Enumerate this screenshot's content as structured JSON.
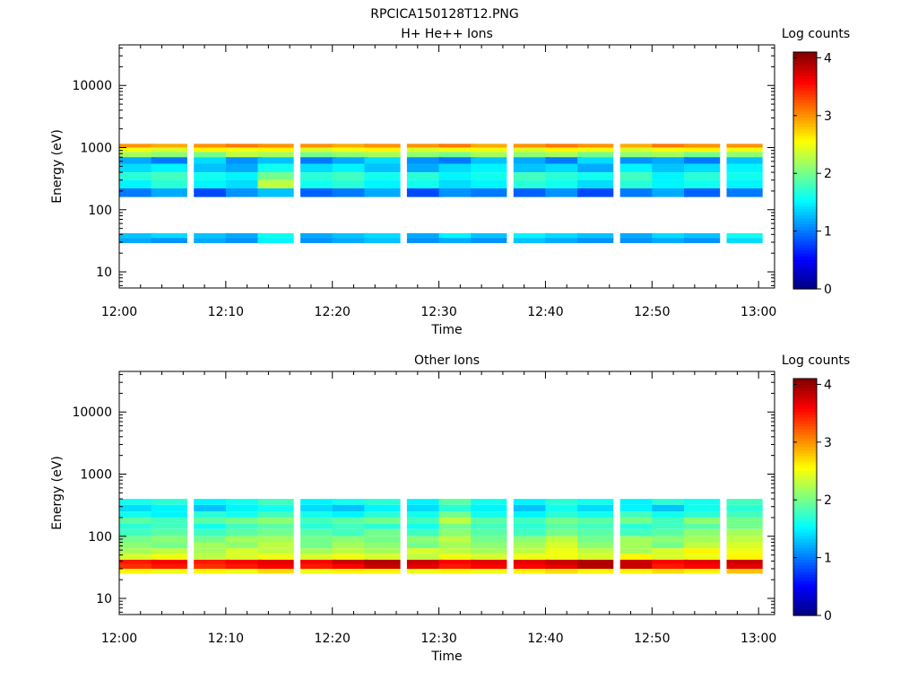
{
  "figure_title": "RPCICA150128T12.PNG",
  "chart_data": [
    {
      "type": "heatmap",
      "title": "H+ He++ Ions",
      "xlabel": "Time",
      "ylabel": "Energy (eV)",
      "x_ticks": [
        "12:00",
        "12:10",
        "12:20",
        "12:30",
        "12:40",
        "12:50",
        "13:00"
      ],
      "y_ticks": [
        "10",
        "100",
        "1000",
        "10000"
      ],
      "y_scale": "log",
      "ylim": [
        5.5,
        45000
      ],
      "colorbar": {
        "label": "Log counts",
        "ticks": [
          "0",
          "1",
          "2",
          "3",
          "4"
        ],
        "range": [
          0,
          4.1
        ],
        "colormap": "jet"
      },
      "time_bins": [
        "12:00",
        "12:03",
        "12:07",
        "12:10",
        "12:13",
        "12:17",
        "12:20",
        "12:23",
        "12:27",
        "12:30",
        "12:33",
        "12:37",
        "12:40",
        "12:43",
        "12:47",
        "12:50",
        "12:53",
        "12:57"
      ],
      "bands": [
        {
          "energy_ev": [
            1000,
            1150
          ],
          "values": [
            3.0,
            2.9,
            3.0,
            3.1,
            3.0,
            3.0,
            2.9,
            3.0,
            3.0,
            3.1,
            2.9,
            3.0,
            3.1,
            3.0,
            2.9,
            3.1,
            3.0,
            3.0
          ]
        },
        {
          "energy_ev": [
            850,
            1000
          ],
          "values": [
            2.5,
            2.4,
            2.6,
            2.5,
            2.6,
            2.4,
            2.5,
            2.6,
            2.4,
            2.5,
            2.5,
            2.4,
            2.6,
            2.5,
            2.4,
            2.5,
            2.6,
            2.5
          ]
        },
        {
          "energy_ev": [
            700,
            850
          ],
          "values": [
            2.2,
            2.1,
            2.0,
            2.3,
            2.2,
            2.0,
            2.1,
            2.2,
            2.1,
            2.0,
            2.2,
            2.1,
            2.2,
            2.0,
            2.1,
            2.2,
            2.0,
            2.1
          ]
        },
        {
          "energy_ev": [
            550,
            700
          ],
          "values": [
            1.2,
            1.0,
            1.4,
            1.1,
            1.3,
            1.0,
            1.2,
            1.4,
            1.1,
            1.0,
            1.3,
            1.2,
            1.0,
            1.4,
            1.1,
            1.2,
            1.0,
            1.3
          ]
        },
        {
          "energy_ev": [
            400,
            550
          ],
          "values": [
            1.4,
            1.5,
            1.3,
            1.2,
            1.6,
            1.4,
            1.5,
            1.3,
            1.2,
            1.4,
            1.5,
            1.3,
            1.4,
            1.2,
            1.5,
            1.3,
            1.4,
            1.5
          ]
        },
        {
          "energy_ev": [
            300,
            400
          ],
          "values": [
            1.7,
            1.8,
            1.6,
            1.5,
            2.0,
            1.7,
            1.8,
            1.6,
            1.7,
            1.5,
            1.6,
            1.8,
            1.7,
            1.6,
            1.8,
            1.5,
            1.7,
            1.6
          ]
        },
        {
          "energy_ev": [
            220,
            300
          ],
          "values": [
            1.5,
            1.7,
            1.5,
            1.4,
            2.3,
            1.6,
            1.7,
            1.5,
            1.6,
            1.4,
            1.5,
            1.7,
            1.6,
            1.4,
            1.7,
            1.5,
            1.6,
            1.5
          ]
        },
        {
          "energy_ev": [
            160,
            220
          ],
          "values": [
            1.0,
            1.2,
            0.8,
            1.1,
            1.3,
            0.9,
            1.0,
            1.2,
            0.8,
            1.1,
            1.0,
            0.9,
            1.1,
            0.8,
            1.0,
            1.2,
            0.9,
            1.0
          ]
        },
        {
          "energy_ev": [
            35,
            42
          ],
          "values": [
            1.3,
            1.4,
            1.3,
            1.2,
            1.6,
            1.2,
            1.3,
            1.4,
            1.2,
            1.5,
            1.3,
            1.5,
            1.4,
            1.3,
            1.2,
            1.4,
            1.3,
            1.6
          ]
        },
        {
          "energy_ev": [
            29,
            35
          ],
          "values": [
            1.2,
            1.1,
            1.2,
            1.1,
            1.5,
            1.1,
            1.2,
            1.3,
            1.1,
            1.2,
            1.1,
            1.3,
            1.2,
            1.1,
            1.1,
            1.2,
            1.1,
            1.4
          ]
        }
      ]
    },
    {
      "type": "heatmap",
      "title": "Other Ions",
      "xlabel": "Time",
      "ylabel": "Energy (eV)",
      "x_ticks": [
        "12:00",
        "12:10",
        "12:20",
        "12:30",
        "12:40",
        "12:50",
        "13:00"
      ],
      "y_ticks": [
        "10",
        "100",
        "1000",
        "10000"
      ],
      "y_scale": "log",
      "ylim": [
        5.5,
        45000
      ],
      "colorbar": {
        "label": "Log counts",
        "ticks": [
          "0",
          "1",
          "2",
          "3",
          "4"
        ],
        "range": [
          0,
          4.1
        ],
        "colormap": "jet"
      },
      "time_bins": [
        "12:00",
        "12:03",
        "12:07",
        "12:10",
        "12:13",
        "12:17",
        "12:20",
        "12:23",
        "12:27",
        "12:30",
        "12:33",
        "12:37",
        "12:40",
        "12:43",
        "12:47",
        "12:50",
        "12:53",
        "12:57"
      ],
      "bands": [
        {
          "energy_ev": [
            320,
            400
          ],
          "values": [
            1.6,
            1.7,
            1.5,
            1.6,
            1.8,
            1.5,
            1.6,
            1.7,
            1.5,
            1.9,
            1.6,
            1.5,
            1.7,
            1.6,
            1.5,
            1.7,
            1.6,
            1.8
          ]
        },
        {
          "energy_ev": [
            250,
            320
          ],
          "values": [
            1.4,
            1.5,
            1.3,
            1.5,
            1.6,
            1.4,
            1.3,
            1.5,
            1.4,
            1.7,
            1.5,
            1.3,
            1.6,
            1.4,
            1.5,
            1.3,
            1.6,
            1.7
          ]
        },
        {
          "energy_ev": [
            200,
            250
          ],
          "values": [
            1.6,
            1.5,
            1.7,
            1.6,
            1.8,
            1.6,
            1.5,
            1.7,
            1.6,
            2.0,
            1.6,
            1.5,
            1.7,
            1.6,
            1.8,
            1.6,
            1.7,
            1.8
          ]
        },
        {
          "energy_ev": [
            160,
            200
          ],
          "values": [
            1.9,
            1.8,
            1.9,
            2.0,
            2.1,
            1.8,
            1.9,
            2.0,
            1.8,
            2.3,
            1.9,
            1.8,
            2.0,
            1.9,
            2.0,
            1.8,
            2.1,
            2.0
          ]
        },
        {
          "energy_ev": [
            130,
            160
          ],
          "values": [
            1.7,
            1.8,
            1.6,
            1.8,
            1.9,
            1.7,
            1.8,
            1.7,
            1.6,
            2.0,
            1.8,
            1.7,
            1.9,
            1.8,
            1.7,
            1.8,
            1.9,
            2.0
          ]
        },
        {
          "energy_ev": [
            100,
            130
          ],
          "values": [
            1.8,
            1.9,
            1.8,
            1.9,
            2.0,
            1.9,
            1.8,
            2.0,
            1.8,
            2.1,
            1.9,
            1.8,
            2.0,
            1.9,
            1.8,
            1.9,
            2.1,
            2.2
          ]
        },
        {
          "energy_ev": [
            80,
            100
          ],
          "values": [
            2.0,
            2.1,
            2.0,
            2.2,
            2.2,
            2.0,
            2.1,
            2.0,
            2.1,
            2.3,
            2.0,
            2.1,
            2.3,
            2.0,
            2.2,
            2.1,
            2.2,
            2.3
          ]
        },
        {
          "energy_ev": [
            64,
            80
          ],
          "values": [
            2.1,
            2.0,
            2.2,
            2.1,
            2.3,
            2.0,
            2.2,
            2.1,
            2.0,
            2.2,
            2.1,
            2.2,
            2.4,
            2.1,
            2.2,
            2.0,
            2.3,
            2.4
          ]
        },
        {
          "energy_ev": [
            52,
            64
          ],
          "values": [
            2.2,
            2.3,
            2.2,
            2.4,
            2.3,
            2.2,
            2.3,
            2.2,
            2.4,
            2.3,
            2.2,
            2.3,
            2.5,
            2.3,
            2.2,
            2.4,
            2.6,
            2.5
          ]
        },
        {
          "energy_ev": [
            42,
            52
          ],
          "values": [
            2.4,
            2.5,
            2.3,
            2.4,
            2.5,
            2.4,
            2.5,
            2.4,
            2.3,
            2.5,
            2.4,
            2.5,
            2.5,
            2.4,
            2.6,
            2.4,
            2.5,
            2.6
          ]
        },
        {
          "energy_ev": [
            36,
            42
          ],
          "values": [
            3.5,
            3.6,
            3.5,
            3.6,
            3.7,
            3.6,
            3.8,
            3.9,
            3.8,
            3.6,
            3.7,
            3.7,
            3.8,
            3.9,
            3.8,
            3.6,
            3.7,
            3.8
          ]
        },
        {
          "energy_ev": [
            30,
            36
          ],
          "values": [
            3.4,
            3.5,
            3.4,
            3.5,
            3.6,
            3.5,
            3.6,
            3.8,
            3.7,
            3.5,
            3.6,
            3.6,
            3.7,
            3.9,
            3.8,
            3.5,
            3.6,
            3.7
          ]
        },
        {
          "energy_ev": [
            25,
            30
          ],
          "values": [
            2.6,
            2.5,
            2.6,
            2.5,
            2.7,
            2.5,
            2.6,
            2.6,
            2.5,
            2.6,
            2.5,
            2.6,
            2.7,
            2.6,
            2.6,
            2.7,
            2.6,
            2.8
          ]
        }
      ]
    }
  ]
}
